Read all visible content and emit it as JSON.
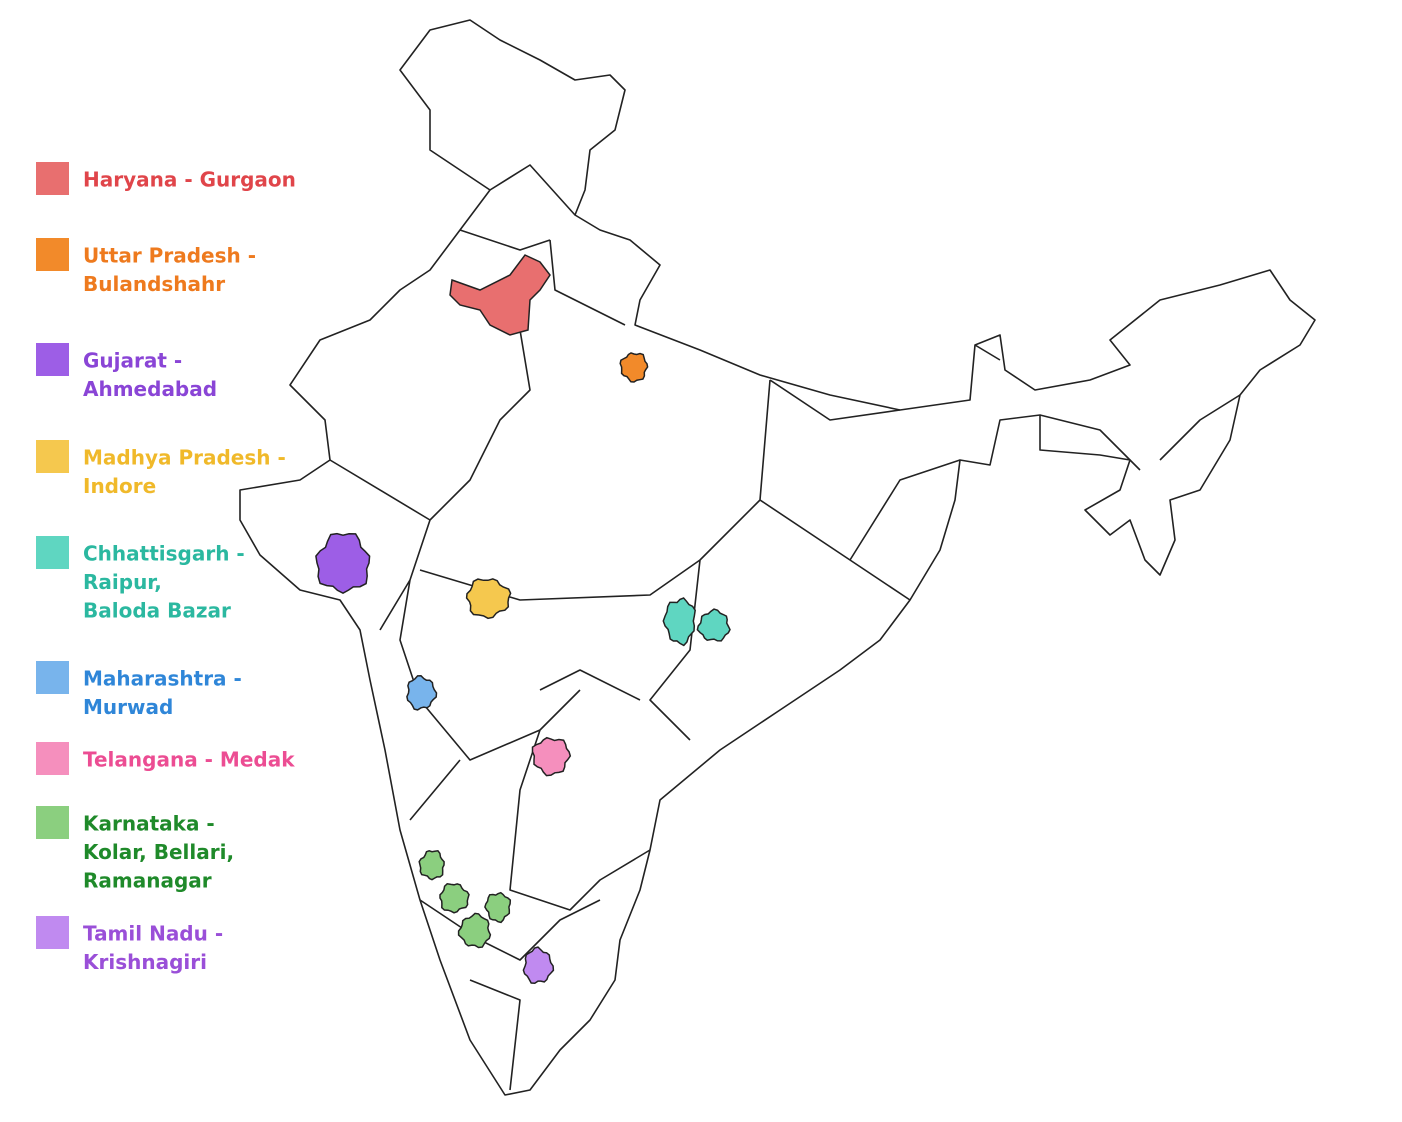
{
  "legend": {
    "items": [
      {
        "lines": [
          "Haryana - Gurgaon"
        ],
        "color": "#e86f6f",
        "text_color": "#e0454a"
      },
      {
        "lines": [
          "Uttar Pradesh -",
          "Bulandshahr"
        ],
        "color": "#f28a2a",
        "text_color": "#ee7a1e"
      },
      {
        "lines": [
          "Gujarat -",
          "Ahmedabad"
        ],
        "color": "#9d5ee6",
        "text_color": "#8a45d6"
      },
      {
        "lines": [
          "Madhya Pradesh -",
          "Indore"
        ],
        "color": "#f5c84e",
        "text_color": "#f0b92a"
      },
      {
        "lines": [
          "Chhattisgarh -",
          "Raipur,",
          "Baloda Bazar"
        ],
        "color": "#5fd6c1",
        "text_color": "#2bb8a0"
      },
      {
        "lines": [
          "Maharashtra -",
          "Murwad"
        ],
        "color": "#78b4ec",
        "text_color": "#2f86d8"
      },
      {
        "lines": [
          "Telangana - Medak"
        ],
        "color": "#f58fbd",
        "text_color": "#ec4d93"
      },
      {
        "lines": [
          "Karnataka -",
          "Kolar, Bellari,",
          "Ramanagar"
        ],
        "color": "#8bcf7f",
        "text_color": "#1f8a2a"
      },
      {
        "lines": [
          "Tamil Nadu -",
          "Krishnagiri"
        ],
        "color": "#c08af0",
        "text_color": "#9a4fd8"
      }
    ]
  }
}
